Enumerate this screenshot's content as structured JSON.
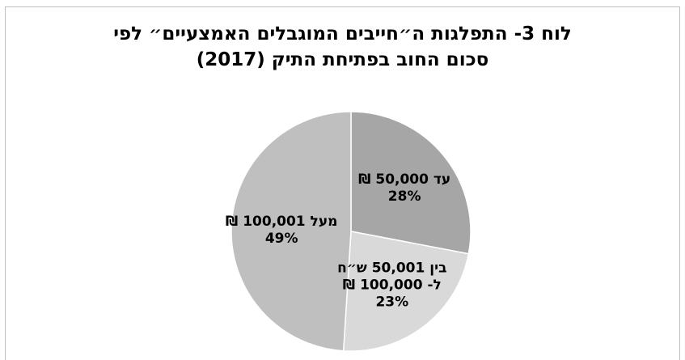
{
  "chart_data": {
    "type": "pie",
    "title_lines": [
      "לוח 3- התפלגות ה״חייבים המוגבלים האמצעיים״ לפי",
      "סכום החוב בפתיחת התיק (2017)"
    ],
    "slices": [
      {
        "label_lines": [
          "עד 50,000 ₪"
        ],
        "value": 28,
        "value_label": "28%",
        "color": "#a6a6a6"
      },
      {
        "label_lines": [
          "בין 50,001 ש״ח",
          "ל- 100,000 ₪"
        ],
        "value": 23,
        "value_label": "23%",
        "color": "#d9d9d9"
      },
      {
        "label_lines": [
          "מעל 100,001 ₪"
        ],
        "value": 49,
        "value_label": "49%",
        "color": "#bfbfbf"
      }
    ],
    "start": "12 o'clock",
    "direction": "clockwise",
    "legend": "none"
  }
}
